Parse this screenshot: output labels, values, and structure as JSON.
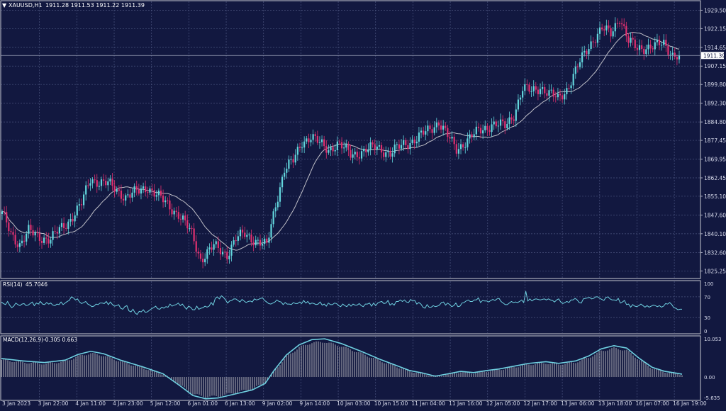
{
  "symbol_header": {
    "symbol_label": "XAUUSD,H1",
    "ohlc_text": "1911.28 1911.53 1911.22 1911.39"
  },
  "colors": {
    "background": "#121840",
    "grid": "#4a537e",
    "axis_text": "#d6d9ea",
    "candle_up": "#63d6dd",
    "candle_down": "#e0306f",
    "ma_line": "#c0c0c8",
    "rsi_line": "#6fd0e0",
    "macd_line": "#6fd0e0",
    "macd_hist": "#b0b0b8"
  },
  "chart_data": [
    {
      "type": "candlestick",
      "title": "XAUUSD,H1",
      "price_ticks": [
        "1929.50",
        "1922.15",
        "1914.65",
        "1907.15",
        "1899.80",
        "1892.30",
        "1884.80",
        "1877.45",
        "1869.95",
        "1862.45",
        "1855.10",
        "1847.60",
        "1840.10",
        "1832.60",
        "1825.25"
      ],
      "ylim": [
        1822.5,
        1933.0
      ],
      "current_price_label": "1911.39",
      "current_price": 1911.39,
      "moving_average": true,
      "date_labels": [
        "3 Jan 2023",
        "3 Jan 22:00",
        "4 Jan 11:00",
        "4 Jan 23:00",
        "5 Jan 12:00",
        "6 Jan 01:00",
        "6 Jan 13:00",
        "9 Jan 02:00",
        "9 Jan 14:00",
        "10 Jan 03:00",
        "10 Jan 15:00",
        "11 Jan 04:00",
        "11 Jan 16:00",
        "12 Jan 05:00",
        "12 Jan 17:00",
        "13 Jan 06:00",
        "13 Jan 18:00",
        "16 Jan 07:00",
        "16 Jan 19:00"
      ],
      "close_path": [
        [
          0,
          1848
        ],
        [
          4,
          1840
        ],
        [
          8,
          1836
        ],
        [
          12,
          1841
        ],
        [
          16,
          1839
        ],
        [
          22,
          1838
        ],
        [
          30,
          1845
        ],
        [
          36,
          1852
        ],
        [
          40,
          1862
        ],
        [
          48,
          1860
        ],
        [
          56,
          1855
        ],
        [
          62,
          1857
        ],
        [
          66,
          1859
        ],
        [
          72,
          1854
        ],
        [
          80,
          1848
        ],
        [
          86,
          1840
        ],
        [
          90,
          1830
        ],
        [
          96,
          1835
        ],
        [
          102,
          1832
        ],
        [
          106,
          1838
        ],
        [
          110,
          1840
        ],
        [
          116,
          1837
        ],
        [
          120,
          1835
        ],
        [
          124,
          1852
        ],
        [
          128,
          1866
        ],
        [
          132,
          1869
        ],
        [
          136,
          1877
        ],
        [
          140,
          1879
        ],
        [
          144,
          1876
        ],
        [
          148,
          1874
        ],
        [
          152,
          1876
        ],
        [
          158,
          1872
        ],
        [
          164,
          1873
        ],
        [
          170,
          1875
        ],
        [
          176,
          1872
        ],
        [
          182,
          1876
        ],
        [
          188,
          1878
        ],
        [
          194,
          1882
        ],
        [
          198,
          1885
        ],
        [
          202,
          1879
        ],
        [
          206,
          1874
        ],
        [
          210,
          1877
        ],
        [
          216,
          1881
        ],
        [
          222,
          1884
        ],
        [
          228,
          1883
        ],
        [
          232,
          1888
        ],
        [
          236,
          1898
        ],
        [
          240,
          1897
        ],
        [
          244,
          1899
        ],
        [
          248,
          1896
        ],
        [
          252,
          1894
        ],
        [
          256,
          1898
        ],
        [
          260,
          1905
        ],
        [
          264,
          1912
        ],
        [
          268,
          1918
        ],
        [
          272,
          1922
        ],
        [
          276,
          1920
        ],
        [
          280,
          1927
        ],
        [
          284,
          1917
        ],
        [
          288,
          1914
        ],
        [
          292,
          1915
        ],
        [
          296,
          1915
        ],
        [
          300,
          1916
        ],
        [
          304,
          1912
        ],
        [
          307,
          1911.39
        ]
      ]
    },
    {
      "type": "line",
      "title": "RSI(14) 45.7046",
      "label_name": "RSI(14)",
      "label_value": "45.7046",
      "levels": [
        "100",
        "70",
        "30",
        "0"
      ],
      "ylim": [
        0,
        100
      ],
      "values": [
        60,
        57,
        55,
        61,
        54,
        49,
        52,
        58,
        55,
        53,
        56,
        57,
        53,
        54,
        57,
        60,
        53,
        58,
        56,
        61,
        56,
        55,
        59,
        56,
        58,
        54,
        53,
        56,
        55,
        60,
        55,
        58,
        61,
        63,
        70,
        68,
        64,
        66,
        60,
        57,
        59,
        61,
        56,
        54,
        51,
        52,
        56,
        55,
        58,
        58,
        57,
        61,
        55,
        60,
        55,
        52,
        53,
        55,
        48,
        46,
        51,
        53,
        43,
        41,
        46,
        39,
        36,
        42,
        41,
        45,
        40,
        41,
        44,
        47,
        49,
        52,
        47,
        46,
        50,
        48,
        51,
        50,
        56,
        52,
        54,
        55,
        58,
        53,
        56,
        51,
        46,
        52,
        50,
        45,
        45,
        52,
        46,
        48,
        49,
        52,
        50,
        52,
        59,
        54,
        67,
        70,
        66,
        72,
        69,
        64,
        58,
        62,
        63,
        66,
        66,
        63,
        60,
        65,
        62,
        59,
        61,
        62,
        60,
        66,
        64,
        65,
        67,
        68,
        63,
        60,
        57,
        56,
        58,
        60,
        64,
        61,
        60,
        55,
        59,
        56,
        56,
        55,
        59,
        57,
        57,
        60,
        57,
        63,
        58,
        61,
        56,
        58,
        57,
        55,
        56,
        60,
        54,
        56,
        52,
        58,
        55,
        55,
        58,
        57,
        53,
        51,
        56,
        53,
        51,
        56,
        52,
        56,
        54,
        54,
        57,
        53,
        51,
        56,
        56,
        58,
        52,
        58,
        53,
        58,
        60,
        61,
        57,
        58,
        63,
        54,
        57,
        54,
        61,
        61,
        64,
        61,
        64,
        60,
        59,
        65,
        62,
        63,
        56,
        59,
        56,
        50,
        48,
        55,
        50,
        50,
        53,
        51,
        52,
        54,
        59,
        60,
        54,
        58,
        55,
        51,
        53,
        58,
        51,
        52,
        58,
        59,
        62,
        64,
        61,
        61,
        64,
        64,
        68,
        59,
        63,
        62,
        62,
        60,
        63,
        65,
        63,
        66,
        67,
        61,
        58,
        55,
        55,
        58,
        61,
        59,
        60,
        59,
        61,
        64,
        59,
        81,
        62,
        66,
        62,
        65,
        66,
        65,
        64,
        65,
        66,
        64,
        66,
        64,
        63,
        60,
        64,
        66,
        60,
        57,
        59,
        61,
        59,
        64,
        64,
        67,
        64,
        59,
        58,
        66,
        67,
        68,
        69,
        66,
        67,
        70,
        70,
        67,
        65,
        63,
        69,
        70,
        66,
        64,
        64,
        63,
        67,
        58,
        60,
        63,
        55,
        56,
        50,
        55,
        52,
        51,
        53,
        56,
        53,
        50,
        53,
        50,
        52,
        54,
        53,
        51,
        53,
        50,
        52,
        57,
        56,
        59,
        55,
        49,
        48,
        45,
        46,
        46
      ]
    },
    {
      "type": "bar+line",
      "title": "MACD(12,26,9) -0.305 0.663",
      "label_name": "MACD(12,26,9)",
      "label_values": "-0.305 0.663",
      "levels": [
        "10.053",
        "0.00",
        "-5.635"
      ],
      "ylim": [
        -5.635,
        10.053
      ],
      "signal_path": [
        [
          0,
          4.6
        ],
        [
          10,
          4.0
        ],
        [
          20,
          3.6
        ],
        [
          30,
          4.2
        ],
        [
          36,
          5.6
        ],
        [
          42,
          6.4
        ],
        [
          48,
          5.8
        ],
        [
          56,
          4.2
        ],
        [
          66,
          2.6
        ],
        [
          76,
          0.8
        ],
        [
          84,
          -2.2
        ],
        [
          90,
          -4.6
        ],
        [
          96,
          -5.4
        ],
        [
          102,
          -5.2
        ],
        [
          110,
          -4.2
        ],
        [
          118,
          -3.2
        ],
        [
          124,
          -1.6
        ],
        [
          128,
          1.5
        ],
        [
          134,
          5.5
        ],
        [
          140,
          8.0
        ],
        [
          146,
          9.3
        ],
        [
          152,
          9.5
        ],
        [
          160,
          8.3
        ],
        [
          170,
          6.2
        ],
        [
          178,
          4.4
        ],
        [
          186,
          2.8
        ],
        [
          192,
          1.6
        ],
        [
          198,
          1.0
        ],
        [
          204,
          0.2
        ],
        [
          210,
          0.8
        ],
        [
          216,
          1.4
        ],
        [
          222,
          1.1
        ],
        [
          228,
          1.6
        ],
        [
          234,
          2.0
        ],
        [
          240,
          2.6
        ],
        [
          248,
          3.4
        ],
        [
          256,
          3.8
        ],
        [
          262,
          3.4
        ],
        [
          270,
          4.0
        ],
        [
          276,
          5.2
        ],
        [
          282,
          7.0
        ],
        [
          288,
          7.8
        ],
        [
          294,
          7.2
        ],
        [
          300,
          4.6
        ],
        [
          306,
          2.4
        ],
        [
          312,
          1.4
        ],
        [
          318,
          0.9
        ],
        [
          320,
          0.7
        ]
      ]
    }
  ]
}
